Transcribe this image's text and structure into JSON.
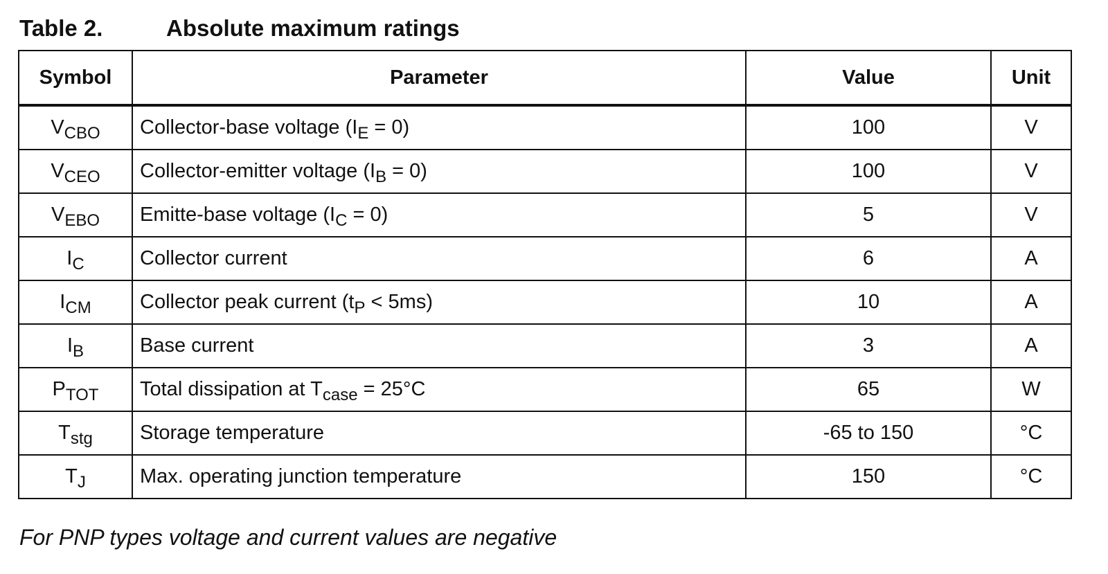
{
  "title": {
    "number": "Table 2.",
    "text": "Absolute maximum ratings"
  },
  "table": {
    "header": [
      "Symbol",
      "Parameter",
      "Value",
      "Unit"
    ],
    "rows": [
      {
        "symbol": [
          "V",
          {
            "sub": "CBO"
          }
        ],
        "parameter": [
          "Collector-base voltage (I",
          {
            "sub": "E"
          },
          " = 0)"
        ],
        "value": "100",
        "unit": "V"
      },
      {
        "symbol": [
          "V",
          {
            "sub": "CEO"
          }
        ],
        "parameter": [
          "Collector-emitter voltage (I",
          {
            "sub": "B"
          },
          " = 0)"
        ],
        "value": "100",
        "unit": "V"
      },
      {
        "symbol": [
          "V",
          {
            "sub": "EBO"
          }
        ],
        "parameter": [
          "Emitte-base voltage (I",
          {
            "sub": "C"
          },
          " = 0)"
        ],
        "value": "5",
        "unit": "V"
      },
      {
        "symbol": [
          "I",
          {
            "sub": "C"
          }
        ],
        "parameter": [
          "Collector current"
        ],
        "value": "6",
        "unit": "A"
      },
      {
        "symbol": [
          "I",
          {
            "sub": "CM"
          }
        ],
        "parameter": [
          "Collector peak current (t",
          {
            "sub": "P"
          },
          " < 5ms)"
        ],
        "value": "10",
        "unit": "A"
      },
      {
        "symbol": [
          "I",
          {
            "sub": "B"
          }
        ],
        "parameter": [
          "Base current"
        ],
        "value": "3",
        "unit": "A"
      },
      {
        "symbol": [
          "P",
          {
            "sub": "TOT"
          }
        ],
        "parameter": [
          "Total dissipation at T",
          {
            "sub": "case"
          },
          " = 25°C"
        ],
        "value": "65",
        "unit": "W"
      },
      {
        "symbol": [
          "T",
          {
            "sub": "stg"
          }
        ],
        "parameter": [
          "Storage temperature"
        ],
        "value": "-65 to 150",
        "unit": "°C"
      },
      {
        "symbol": [
          "T",
          {
            "sub": "J"
          }
        ],
        "parameter": [
          "Max. operating junction temperature"
        ],
        "value": "150",
        "unit": "°C"
      }
    ]
  },
  "note": "For PNP types voltage and current values are negative"
}
